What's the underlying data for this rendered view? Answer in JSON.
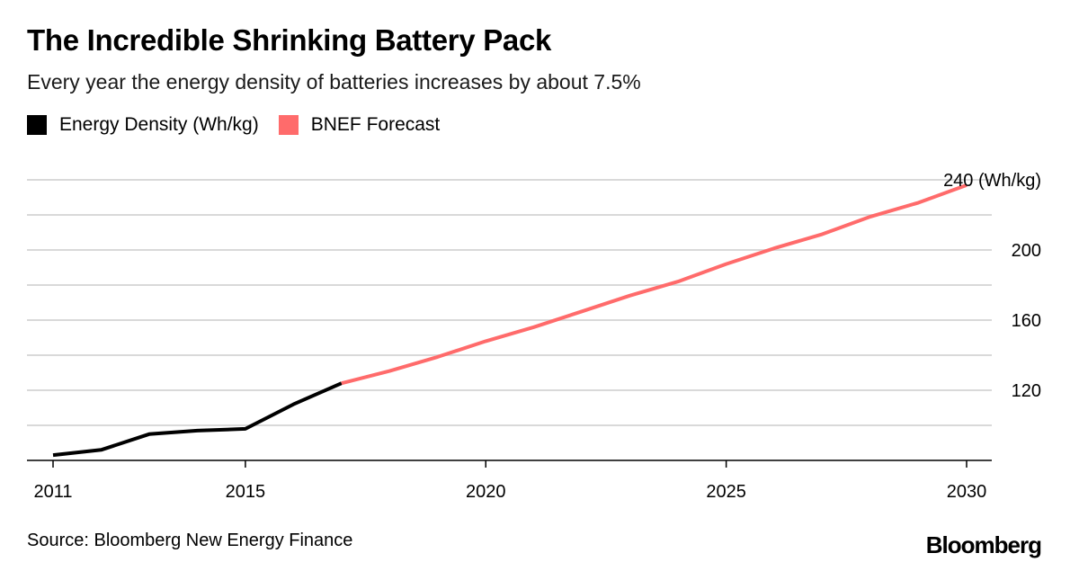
{
  "title": "The Incredible Shrinking Battery Pack",
  "subtitle": "Every year the energy density of batteries increases by about 7.5%",
  "source": "Source: Bloomberg New Energy Finance",
  "logo": "Bloomberg",
  "colors": {
    "history": "#000000",
    "forecast": "#ff6b6b",
    "grid": "#d9d9d9"
  },
  "chart_data": {
    "type": "line",
    "ylabel": "(Wh/kg)",
    "ylim": [
      80,
      240
    ],
    "xlim": [
      2011,
      2030
    ],
    "yticks": [
      120,
      160,
      200,
      240
    ],
    "ytick_labels": [
      "120",
      "160",
      "200",
      "240 (Wh/kg)"
    ],
    "xticks": [
      2011,
      2015,
      2020,
      2025,
      2030
    ],
    "grid": true,
    "legend_position": "top-left",
    "series": [
      {
        "name": "Energy Density (Wh/kg)",
        "color": "#000000",
        "x": [
          2011,
          2012,
          2013,
          2014,
          2015,
          2016,
          2017
        ],
        "y": [
          83,
          86,
          95,
          97,
          98,
          112,
          124
        ]
      },
      {
        "name": "BNEF Forecast",
        "color": "#ff6b6b",
        "x": [
          2017,
          2018,
          2019,
          2020,
          2021,
          2022,
          2023,
          2024,
          2025,
          2026,
          2027,
          2028,
          2029,
          2030
        ],
        "y": [
          124,
          131,
          139,
          148,
          156,
          165,
          174,
          182,
          192,
          201,
          209,
          219,
          227,
          237
        ]
      }
    ]
  }
}
